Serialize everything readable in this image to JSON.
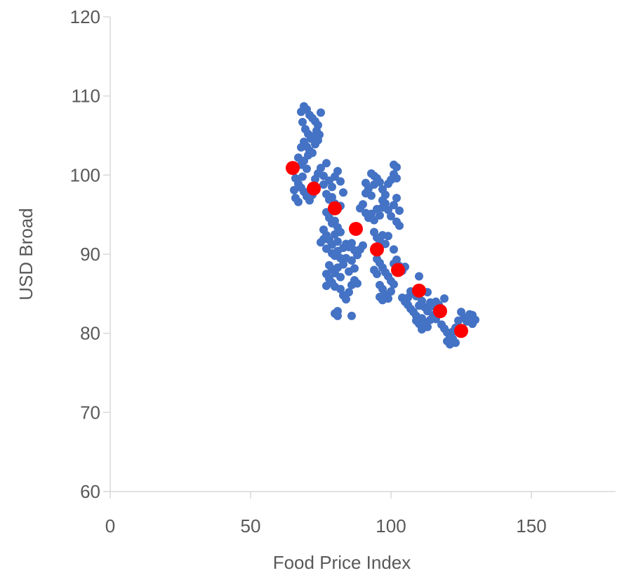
{
  "chart_data": {
    "type": "scatter",
    "xlabel": "Food Price Index",
    "ylabel": "USD Broad",
    "xlim": [
      0,
      180
    ],
    "ylim": [
      60,
      120
    ],
    "x_ticks": [
      0,
      50,
      100,
      150
    ],
    "y_ticks": [
      60,
      70,
      80,
      90,
      100,
      110,
      120
    ],
    "grid": false,
    "legend": "none",
    "series": [
      {
        "color": "#4472c4",
        "marker": "circle",
        "points": [
          [
            68,
            108
          ],
          [
            69,
            108.7
          ],
          [
            70,
            108.3
          ],
          [
            71,
            107.6
          ],
          [
            72,
            107.2
          ],
          [
            73,
            106.8
          ],
          [
            74,
            106.3
          ],
          [
            75,
            107.9
          ],
          [
            68.5,
            106.7
          ],
          [
            69.5,
            105.8
          ],
          [
            70.5,
            105.2
          ],
          [
            71.5,
            104.6
          ],
          [
            72.5,
            104.9
          ],
          [
            73.5,
            105.6
          ],
          [
            74.5,
            105.1
          ],
          [
            69,
            104.2
          ],
          [
            70,
            103.6
          ],
          [
            71,
            103.1
          ],
          [
            72,
            102.8
          ],
          [
            73,
            103.9
          ],
          [
            74,
            104.4
          ],
          [
            68,
            103.5
          ],
          [
            70.5,
            102.5
          ],
          [
            69,
            101.8
          ],
          [
            67,
            102.2
          ],
          [
            68,
            101.3
          ],
          [
            70,
            100.8
          ],
          [
            66,
            99.6
          ],
          [
            67,
            98.9
          ],
          [
            68,
            98.4
          ],
          [
            69,
            97.9
          ],
          [
            70,
            97.3
          ],
          [
            71,
            96.8
          ],
          [
            72,
            97.5
          ],
          [
            66,
            97.1
          ],
          [
            67,
            96.6
          ],
          [
            65.5,
            98.1
          ],
          [
            68.5,
            99.8
          ],
          [
            73,
            99.5
          ],
          [
            74,
            100.2
          ],
          [
            75,
            100.9
          ],
          [
            76,
            99.9
          ],
          [
            77,
            101.5
          ],
          [
            78,
            99.3
          ],
          [
            79,
            98.5
          ],
          [
            80,
            99.8
          ],
          [
            81,
            100.5
          ],
          [
            82,
            99.2
          ],
          [
            76,
            98.8
          ],
          [
            77,
            97.6
          ],
          [
            78,
            96.9
          ],
          [
            79,
            97.2
          ],
          [
            80,
            96.4
          ],
          [
            81,
            95.7
          ],
          [
            82,
            96.1
          ],
          [
            83,
            97.8
          ],
          [
            77,
            95.3
          ],
          [
            78,
            94.6
          ],
          [
            79,
            93.9
          ],
          [
            80,
            94.2
          ],
          [
            81,
            93.4
          ],
          [
            82,
            92.8
          ],
          [
            76,
            93.1
          ],
          [
            77,
            92.4
          ],
          [
            78,
            91.8
          ],
          [
            79,
            91.2
          ],
          [
            80,
            92.5
          ],
          [
            81,
            91.6
          ],
          [
            76,
            91.9
          ],
          [
            75,
            91.5
          ],
          [
            77,
            90.7
          ],
          [
            79,
            90.1
          ],
          [
            80,
            89.8
          ],
          [
            81,
            90.4
          ],
          [
            82,
            89.5
          ],
          [
            83,
            90.8
          ],
          [
            84,
            91.3
          ],
          [
            85,
            90.9
          ],
          [
            78,
            88.6
          ],
          [
            79,
            88.1
          ],
          [
            80,
            87.6
          ],
          [
            81,
            88.3
          ],
          [
            82,
            87.1
          ],
          [
            77,
            87.5
          ],
          [
            78,
            86.9
          ],
          [
            79,
            86.4
          ],
          [
            80,
            85.9
          ],
          [
            82,
            85.6
          ],
          [
            83,
            84.8
          ],
          [
            84,
            84.3
          ],
          [
            85,
            85.2
          ],
          [
            86,
            86.1
          ],
          [
            87,
            86.7
          ],
          [
            88,
            86.3
          ],
          [
            77,
            86.0
          ],
          [
            80,
            82.5
          ],
          [
            81,
            82.2
          ],
          [
            86,
            82.2
          ],
          [
            81,
            82.8
          ],
          [
            85,
            87.8
          ],
          [
            87,
            88.2
          ],
          [
            83,
            88.7
          ],
          [
            84,
            89.5
          ],
          [
            86,
            89.2
          ],
          [
            88,
            89.9
          ],
          [
            89,
            90.6
          ],
          [
            90,
            91.1
          ],
          [
            86,
            91.4
          ],
          [
            87,
            90.5
          ],
          [
            89,
            95.8
          ],
          [
            90,
            96.3
          ],
          [
            91,
            95.2
          ],
          [
            92,
            94.6
          ],
          [
            93,
            95.1
          ],
          [
            94,
            94.3
          ],
          [
            95,
            95.7
          ],
          [
            96,
            94.9
          ],
          [
            91,
            97.7
          ],
          [
            92,
            98.3
          ],
          [
            93,
            97.4
          ],
          [
            94,
            98.8
          ],
          [
            95,
            99.6
          ],
          [
            96,
            99.1
          ],
          [
            97,
            98.2
          ],
          [
            93,
            100.2
          ],
          [
            94,
            99.9
          ],
          [
            91,
            99.0
          ],
          [
            97,
            96.8
          ],
          [
            98,
            97.5
          ],
          [
            99,
            98.9
          ],
          [
            100,
            99.4
          ],
          [
            101,
            100.1
          ],
          [
            102,
            99.6
          ],
          [
            101,
            101.3
          ],
          [
            102,
            101.0
          ],
          [
            97,
            95.9
          ],
          [
            98,
            96.4
          ],
          [
            99,
            95.6
          ],
          [
            100,
            94.8
          ],
          [
            101,
            96.2
          ],
          [
            102,
            97.1
          ],
          [
            103,
            95.5
          ],
          [
            102,
            94.1
          ],
          [
            103,
            93.6
          ],
          [
            94,
            92.8
          ],
          [
            95,
            92.1
          ],
          [
            96,
            91.7
          ],
          [
            97,
            92.4
          ],
          [
            98,
            91.3
          ],
          [
            99,
            92.3
          ],
          [
            95,
            89.4
          ],
          [
            96,
            88.9
          ],
          [
            97,
            88.3
          ],
          [
            98,
            87.7
          ],
          [
            99,
            87.2
          ],
          [
            100,
            86.6
          ],
          [
            96,
            86.1
          ],
          [
            97,
            85.6
          ],
          [
            98,
            84.9
          ],
          [
            99,
            84.4
          ],
          [
            100,
            85.3
          ],
          [
            101,
            86.2
          ],
          [
            96,
            84.6
          ],
          [
            97,
            84.2
          ],
          [
            94,
            88.0
          ],
          [
            95,
            87.5
          ],
          [
            101,
            88.8
          ],
          [
            102,
            89.3
          ],
          [
            103,
            88.5
          ],
          [
            104,
            87.9
          ],
          [
            105,
            88.4
          ],
          [
            101,
            90.6
          ],
          [
            104,
            84.5
          ],
          [
            105,
            84.0
          ],
          [
            106,
            83.6
          ],
          [
            107,
            83.1
          ],
          [
            108,
            82.7
          ],
          [
            109,
            82.2
          ],
          [
            110,
            83.5
          ],
          [
            111,
            84.1
          ],
          [
            112,
            83.3
          ],
          [
            113,
            82.8
          ],
          [
            114,
            83.9
          ],
          [
            115,
            83.4
          ],
          [
            116,
            84.0
          ],
          [
            117,
            83.6
          ],
          [
            118,
            83.1
          ],
          [
            119,
            84.4
          ],
          [
            106,
            84.5
          ],
          [
            107,
            85.3
          ],
          [
            108,
            85.0
          ],
          [
            109,
            84.7
          ],
          [
            110,
            87.2
          ],
          [
            113,
            85.2
          ],
          [
            110,
            85.4
          ],
          [
            109,
            81.6
          ],
          [
            110,
            81.2
          ],
          [
            111,
            81.9
          ],
          [
            112,
            81.4
          ],
          [
            113,
            80.8
          ],
          [
            111,
            80.5
          ],
          [
            114,
            81.7
          ],
          [
            115,
            82.3
          ],
          [
            116,
            81.8
          ],
          [
            117,
            82.5
          ],
          [
            118,
            81.1
          ],
          [
            119,
            80.6
          ],
          [
            120,
            80.1
          ],
          [
            121,
            79.6
          ],
          [
            122,
            80.2
          ],
          [
            123,
            80.7
          ],
          [
            120,
            79.0
          ],
          [
            121,
            78.6
          ],
          [
            122,
            79.3
          ],
          [
            123,
            78.8
          ],
          [
            124,
            81.6
          ],
          [
            125,
            82.7
          ],
          [
            126,
            82.0
          ],
          [
            127,
            81.5
          ],
          [
            128,
            81.9
          ],
          [
            129,
            82.3
          ],
          [
            130,
            81.7
          ],
          [
            129,
            81.2
          ],
          [
            128,
            82.4
          ]
        ]
      },
      {
        "color": "#ff0000",
        "marker": "circle-large",
        "points": [
          [
            65,
            100.9
          ],
          [
            72.5,
            98.3
          ],
          [
            80,
            95.8
          ],
          [
            87.5,
            93.2
          ],
          [
            95,
            90.6
          ],
          [
            102.5,
            88.0
          ],
          [
            110,
            85.4
          ],
          [
            117.5,
            82.8
          ],
          [
            125,
            80.3
          ]
        ]
      }
    ]
  }
}
